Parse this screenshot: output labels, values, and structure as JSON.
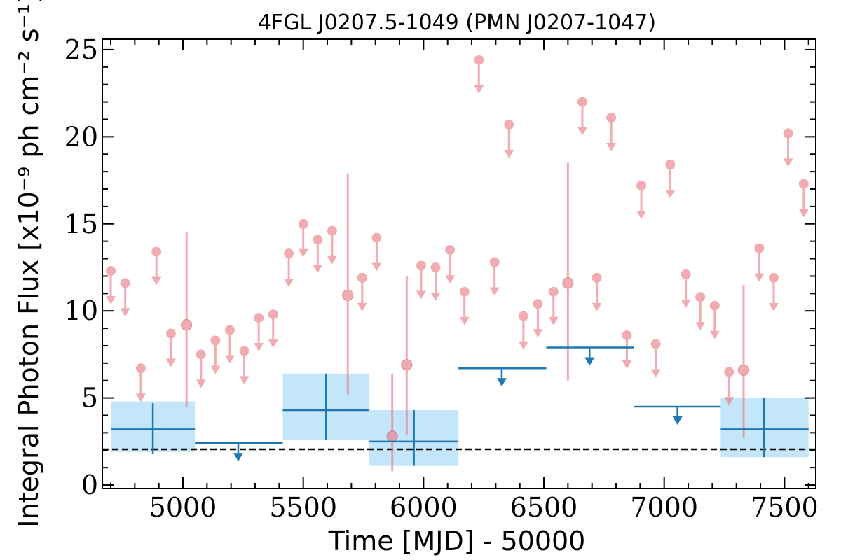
{
  "chart_data": {
    "type": "scatter",
    "title": "4FGL J0207.5-1049 (PMN J0207-1047)",
    "xlabel": "Time [MJD] - 50000",
    "ylabel": "Integral Photon Flux [x10⁻⁹ ph cm⁻² s⁻¹]",
    "xlim": [
      4665,
      7630
    ],
    "ylim": [
      -0.2,
      25.6
    ],
    "x_ticks": [
      5000,
      5500,
      6000,
      6500,
      7000,
      7500
    ],
    "y_ticks": [
      0,
      5,
      10,
      15,
      20,
      25
    ],
    "grid": false,
    "reference_line": {
      "y": 2.05,
      "style": "dashed",
      "color": "#000000"
    },
    "colors": {
      "fine_bins": "#e8767f",
      "coarse_bins": "#1f77b4",
      "coarse_band": "#c4e6fa"
    },
    "series": [
      {
        "kind": "fine_upper_limits",
        "points": [
          {
            "x": 4700,
            "y": 12.3
          },
          {
            "x": 4760,
            "y": 11.6
          },
          {
            "x": 4825,
            "y": 6.7
          },
          {
            "x": 4890,
            "y": 13.4
          },
          {
            "x": 4950,
            "y": 8.7
          },
          {
            "x": 5075,
            "y": 7.5
          },
          {
            "x": 5135,
            "y": 8.3
          },
          {
            "x": 5195,
            "y": 8.9
          },
          {
            "x": 5255,
            "y": 7.7
          },
          {
            "x": 5315,
            "y": 9.6
          },
          {
            "x": 5375,
            "y": 9.8
          },
          {
            "x": 5440,
            "y": 13.3
          },
          {
            "x": 5500,
            "y": 15.0
          },
          {
            "x": 5560,
            "y": 14.1
          },
          {
            "x": 5620,
            "y": 14.6
          },
          {
            "x": 5745,
            "y": 11.9
          },
          {
            "x": 5805,
            "y": 14.2
          },
          {
            "x": 5990,
            "y": 12.6
          },
          {
            "x": 6050,
            "y": 12.5
          },
          {
            "x": 6110,
            "y": 13.5
          },
          {
            "x": 6170,
            "y": 11.1
          },
          {
            "x": 6230,
            "y": 24.4
          },
          {
            "x": 6295,
            "y": 12.8
          },
          {
            "x": 6355,
            "y": 20.7
          },
          {
            "x": 6415,
            "y": 9.7
          },
          {
            "x": 6475,
            "y": 10.4
          },
          {
            "x": 6540,
            "y": 11.1
          },
          {
            "x": 6660,
            "y": 22.0
          },
          {
            "x": 6720,
            "y": 11.9
          },
          {
            "x": 6780,
            "y": 21.1
          },
          {
            "x": 6845,
            "y": 8.6
          },
          {
            "x": 6905,
            "y": 17.2
          },
          {
            "x": 6965,
            "y": 8.1
          },
          {
            "x": 7025,
            "y": 18.4
          },
          {
            "x": 7090,
            "y": 12.1
          },
          {
            "x": 7150,
            "y": 10.8
          },
          {
            "x": 7210,
            "y": 10.3
          },
          {
            "x": 7270,
            "y": 6.5
          },
          {
            "x": 7395,
            "y": 13.6
          },
          {
            "x": 7455,
            "y": 11.9
          },
          {
            "x": 7515,
            "y": 20.2
          },
          {
            "x": 7580,
            "y": 17.3
          }
        ]
      },
      {
        "kind": "fine_detections",
        "points": [
          {
            "x": 5015,
            "y": 9.2,
            "ylo": 4.5,
            "yhi": 14.5
          },
          {
            "x": 5685,
            "y": 10.9,
            "ylo": 5.2,
            "yhi": 17.9
          },
          {
            "x": 5870,
            "y": 2.8,
            "ylo": 0.8,
            "yhi": 6.4
          },
          {
            "x": 5930,
            "y": 6.9,
            "ylo": 2.9,
            "yhi": 12.0
          },
          {
            "x": 6600,
            "y": 11.6,
            "ylo": 6.0,
            "yhi": 18.5
          },
          {
            "x": 7330,
            "y": 6.6,
            "ylo": 2.7,
            "yhi": 11.5
          }
        ]
      },
      {
        "kind": "coarse_detections",
        "points": [
          {
            "x": 4875,
            "x_lo": 4700,
            "x_hi": 5050,
            "y": 3.2,
            "ylo": 1.8,
            "yhi": 4.7,
            "band_lo": 1.9,
            "band_hi": 4.8
          },
          {
            "x": 5595,
            "x_lo": 5415,
            "x_hi": 5775,
            "y": 4.3,
            "ylo": 2.6,
            "yhi": 6.4,
            "band_lo": 2.6,
            "band_hi": 6.4
          },
          {
            "x": 5960,
            "x_lo": 5775,
            "x_hi": 6145,
            "y": 2.5,
            "ylo": 1.1,
            "yhi": 4.3,
            "band_lo": 1.1,
            "band_hi": 4.3
          },
          {
            "x": 7415,
            "x_lo": 7235,
            "x_hi": 7600,
            "y": 3.2,
            "ylo": 1.6,
            "yhi": 5.0,
            "band_lo": 1.6,
            "band_hi": 5.0
          }
        ]
      },
      {
        "kind": "coarse_upper_limits",
        "points": [
          {
            "x": 5230,
            "x_lo": 5050,
            "x_hi": 5415,
            "y": 2.4
          },
          {
            "x": 6325,
            "x_lo": 6145,
            "x_hi": 6510,
            "y": 6.7
          },
          {
            "x": 6690,
            "x_lo": 6510,
            "x_hi": 6875,
            "y": 7.9
          },
          {
            "x": 7055,
            "x_lo": 6875,
            "x_hi": 7235,
            "y": 4.5
          }
        ]
      }
    ]
  }
}
